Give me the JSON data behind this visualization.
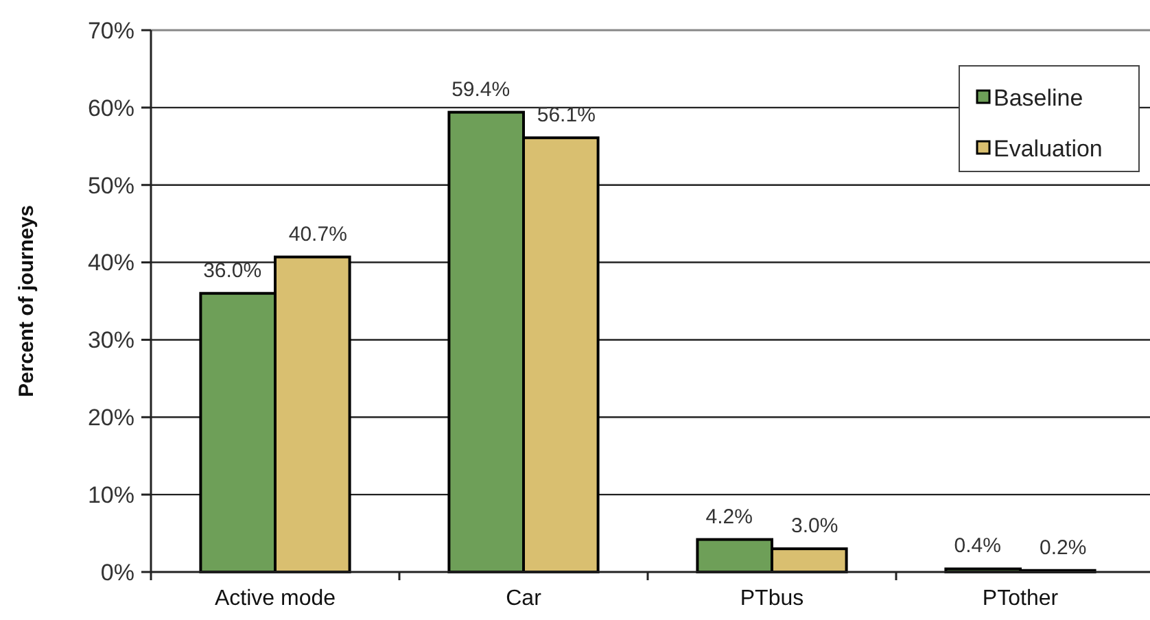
{
  "chart_data": {
    "type": "bar",
    "ylabel": "Percent of journeys",
    "categories": [
      "Active mode",
      "Car",
      "PTbus",
      "PTother"
    ],
    "series": [
      {
        "name": "Baseline",
        "color": "#6e9f58",
        "values": [
          36.0,
          59.4,
          4.2,
          0.4
        ],
        "value_labels": [
          "36.0%",
          "59.4%",
          "4.2%",
          "0.4%"
        ]
      },
      {
        "name": "Evaluation",
        "color": "#d9bf70",
        "values": [
          40.7,
          56.1,
          3.0,
          0.2
        ],
        "value_labels": [
          "40.7%",
          "56.1%",
          "3.0%",
          "0.2%"
        ]
      }
    ],
    "ylim": [
      0,
      70
    ],
    "yticks": [
      {
        "value": 0,
        "label": "0%"
      },
      {
        "value": 10,
        "label": "10%"
      },
      {
        "value": 20,
        "label": "20%"
      },
      {
        "value": 30,
        "label": "30%"
      },
      {
        "value": 40,
        "label": "40%"
      },
      {
        "value": 50,
        "label": "50%"
      },
      {
        "value": 60,
        "label": "60%"
      },
      {
        "value": 70,
        "label": "70%"
      }
    ],
    "grid": "y",
    "legend": "top right"
  }
}
